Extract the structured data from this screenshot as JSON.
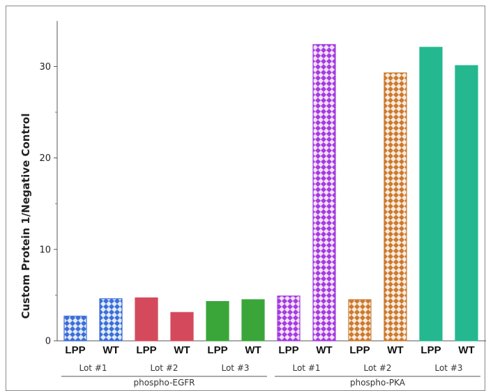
{
  "chart_data": {
    "type": "bar",
    "title": "",
    "ylabel": "Custom Protein 1/Negative Control",
    "ylim": [
      0,
      35
    ],
    "yticks": [
      0,
      10,
      20,
      30
    ],
    "grid": false,
    "groups": [
      {
        "name": "phospho-EGFR",
        "lots": [
          {
            "name": "Lot #1",
            "bars": [
              {
                "label": "LPP",
                "value": 2.7,
                "color": "#3b6fd8",
                "pattern": "checker"
              },
              {
                "label": "WT",
                "value": 4.6,
                "color": "#3b6fd8",
                "pattern": "checker"
              }
            ]
          },
          {
            "name": "Lot #2",
            "bars": [
              {
                "label": "LPP",
                "value": 4.7,
                "color": "#d44a5c",
                "pattern": "solid"
              },
              {
                "label": "WT",
                "value": 3.1,
                "color": "#d44a5c",
                "pattern": "solid"
              }
            ]
          },
          {
            "name": "Lot #3",
            "bars": [
              {
                "label": "LPP",
                "value": 4.3,
                "color": "#3aa63a",
                "pattern": "solid"
              },
              {
                "label": "WT",
                "value": 4.5,
                "color": "#3aa63a",
                "pattern": "solid"
              }
            ]
          }
        ]
      },
      {
        "name": "phospho-PKA",
        "lots": [
          {
            "name": "Lot #1",
            "bars": [
              {
                "label": "LPP",
                "value": 4.9,
                "color": "#a53be0",
                "pattern": "checker"
              },
              {
                "label": "WT",
                "value": 32.4,
                "color": "#a53be0",
                "pattern": "checker"
              }
            ]
          },
          {
            "name": "Lot #2",
            "bars": [
              {
                "label": "LPP",
                "value": 4.5,
                "color": "#cc7a2e",
                "pattern": "checker"
              },
              {
                "label": "WT",
                "value": 29.3,
                "color": "#cc7a2e",
                "pattern": "checker"
              }
            ]
          },
          {
            "name": "Lot #3",
            "bars": [
              {
                "label": "LPP",
                "value": 32.1,
                "color": "#25b890",
                "pattern": "solid"
              },
              {
                "label": "WT",
                "value": 30.1,
                "color": "#25b890",
                "pattern": "solid"
              }
            ]
          }
        ]
      }
    ]
  }
}
